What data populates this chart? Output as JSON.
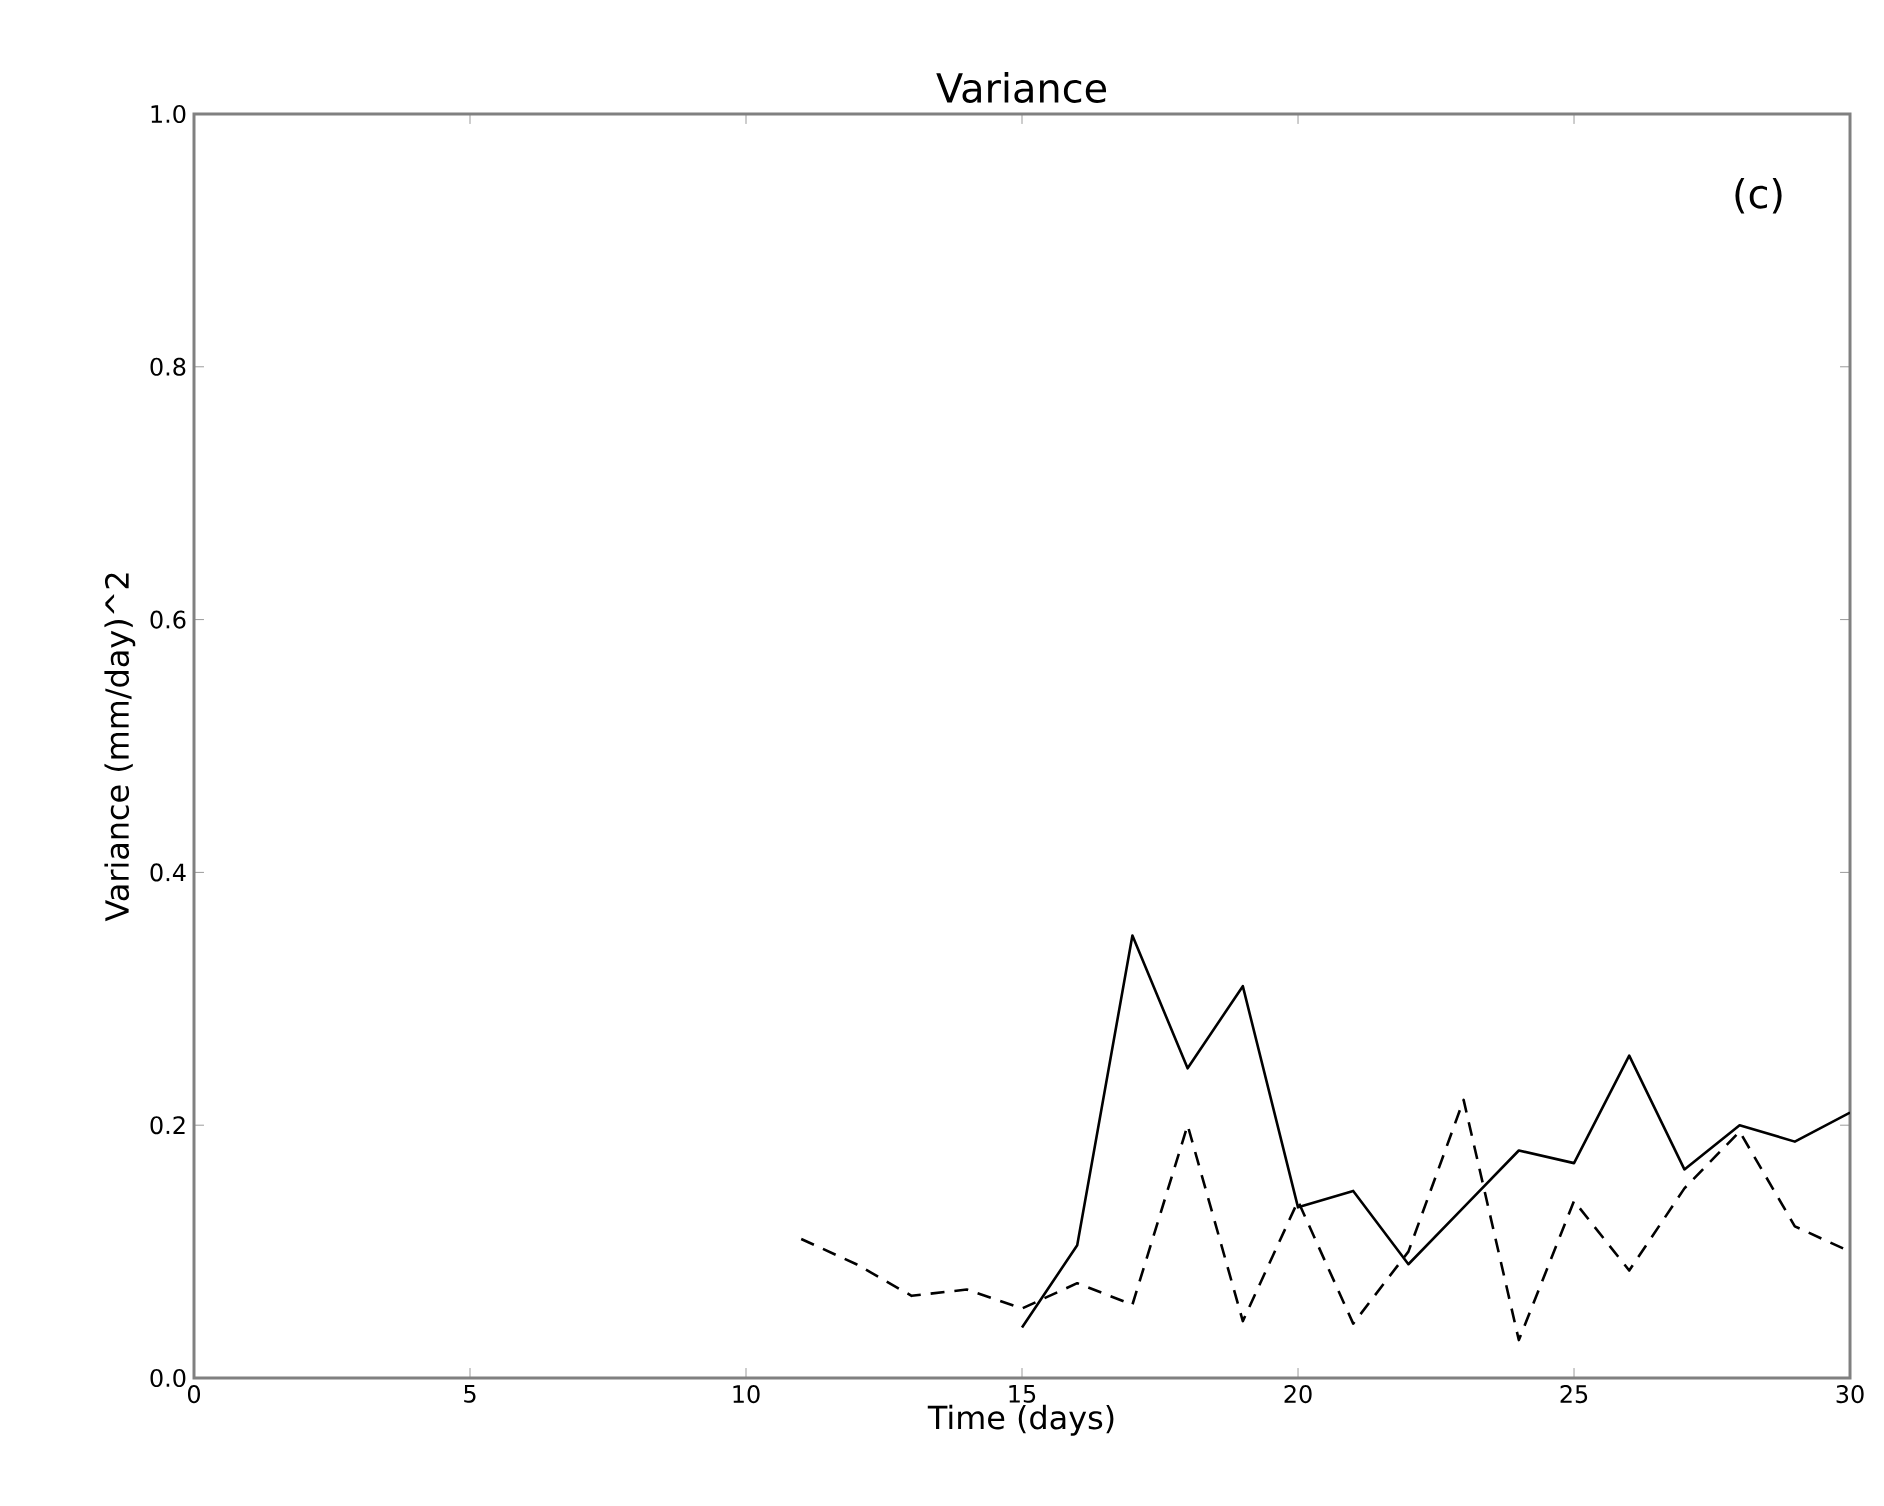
{
  "chart_data": {
    "type": "line",
    "title": "Variance",
    "xlabel": "Time (days)",
    "ylabel": "Variance (mm/day)^2",
    "annotations": [
      "(c)"
    ],
    "xlim": [
      0,
      30
    ],
    "ylim": [
      0,
      1
    ],
    "xticks": [
      0,
      5,
      10,
      15,
      20,
      25,
      30
    ],
    "yticks": [
      {
        "value": 0,
        "label": "0.0"
      },
      {
        "value": 0.2,
        "label": "0.2"
      },
      {
        "value": 0.4,
        "label": "0.4"
      },
      {
        "value": 0.6,
        "label": "0.6"
      },
      {
        "value": 0.8,
        "label": "0.8"
      },
      {
        "value": 1,
        "label": "1.0"
      }
    ],
    "series": [
      {
        "color": "#000000",
        "line_style": "solid",
        "x": [
          15,
          16,
          17,
          18,
          19,
          20,
          21,
          22,
          23,
          24,
          25,
          26,
          27,
          28,
          29,
          30
        ],
        "values": [
          0.04,
          0.105,
          0.35,
          0.245,
          0.31,
          0.135,
          0.148,
          0.09,
          0.135,
          0.18,
          0.17,
          0.255,
          0.165,
          0.2,
          0.187,
          0.21
        ]
      },
      {
        "color": "#000000",
        "line_style": "dashed",
        "x": [
          11,
          12,
          13,
          14,
          15,
          16,
          17,
          18,
          19,
          20,
          21,
          22,
          23,
          24,
          25,
          26,
          27,
          28,
          29,
          30
        ],
        "values": [
          0.11,
          0.09,
          0.065,
          0.07,
          0.055,
          0.075,
          0.058,
          0.2,
          0.045,
          0.14,
          0.043,
          0.1,
          0.22,
          0.03,
          0.14,
          0.085,
          0.15,
          0.195,
          0.12,
          0.1
        ]
      }
    ]
  }
}
